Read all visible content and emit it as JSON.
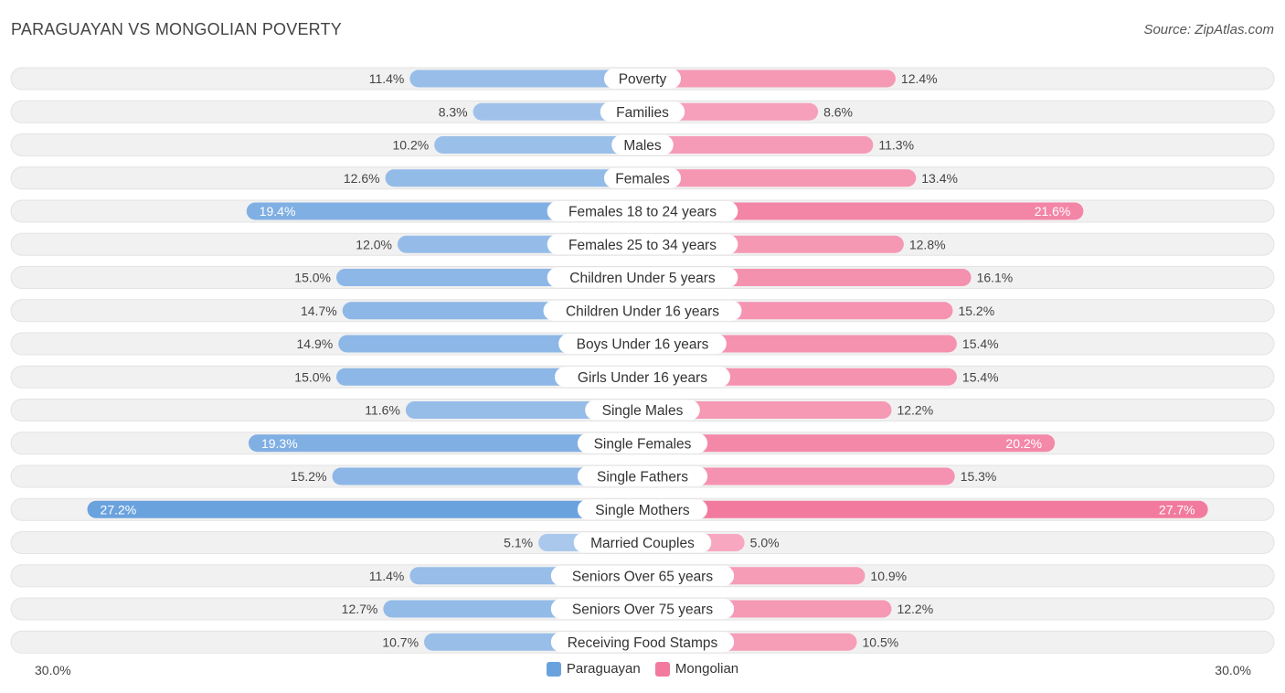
{
  "header": {
    "title": "PARAGUAYAN VS MONGOLIAN POVERTY",
    "source": "Source: ZipAtlas.com"
  },
  "colors": {
    "left_strong": "#6aa2de",
    "left_light": "#a9c8ec",
    "right_strong": "#f27a9f",
    "right_light": "#f7a8c0",
    "row_bg": "#f1f1f1"
  },
  "chart_data": {
    "type": "bar",
    "orientation": "horizontal-diverging",
    "title": "PARAGUAYAN VS MONGOLIAN POVERTY",
    "xlim": [
      0,
      30.0
    ],
    "axis_left_label": "30.0%",
    "axis_right_label": "30.0%",
    "legend_position": "bottom-center",
    "categories": [
      "Poverty",
      "Families",
      "Males",
      "Females",
      "Females 18 to 24 years",
      "Females 25 to 34 years",
      "Children Under 5 years",
      "Children Under 16 years",
      "Boys Under 16 years",
      "Girls Under 16 years",
      "Single Males",
      "Single Females",
      "Single Fathers",
      "Single Mothers",
      "Married Couples",
      "Seniors Over 65 years",
      "Seniors Over 75 years",
      "Receiving Food Stamps"
    ],
    "series": [
      {
        "name": "Paraguayan",
        "values": [
          11.4,
          8.3,
          10.2,
          12.6,
          19.4,
          12.0,
          15.0,
          14.7,
          14.9,
          15.0,
          11.6,
          19.3,
          15.2,
          27.2,
          5.1,
          11.4,
          12.7,
          10.7
        ],
        "labels": [
          "11.4%",
          "8.3%",
          "10.2%",
          "12.6%",
          "19.4%",
          "12.0%",
          "15.0%",
          "14.7%",
          "14.9%",
          "15.0%",
          "11.6%",
          "19.3%",
          "15.2%",
          "27.2%",
          "5.1%",
          "11.4%",
          "12.7%",
          "10.7%"
        ]
      },
      {
        "name": "Mongolian",
        "values": [
          12.4,
          8.6,
          11.3,
          13.4,
          21.6,
          12.8,
          16.1,
          15.2,
          15.4,
          15.4,
          12.2,
          20.2,
          15.3,
          27.7,
          5.0,
          10.9,
          12.2,
          10.5
        ],
        "labels": [
          "12.4%",
          "8.6%",
          "11.3%",
          "13.4%",
          "21.6%",
          "12.8%",
          "16.1%",
          "15.2%",
          "15.4%",
          "15.4%",
          "12.2%",
          "20.2%",
          "15.3%",
          "27.7%",
          "5.0%",
          "10.9%",
          "12.2%",
          "10.5%"
        ]
      }
    ]
  },
  "legend": {
    "items": [
      {
        "label": "Paraguayan"
      },
      {
        "label": "Mongolian"
      }
    ]
  }
}
